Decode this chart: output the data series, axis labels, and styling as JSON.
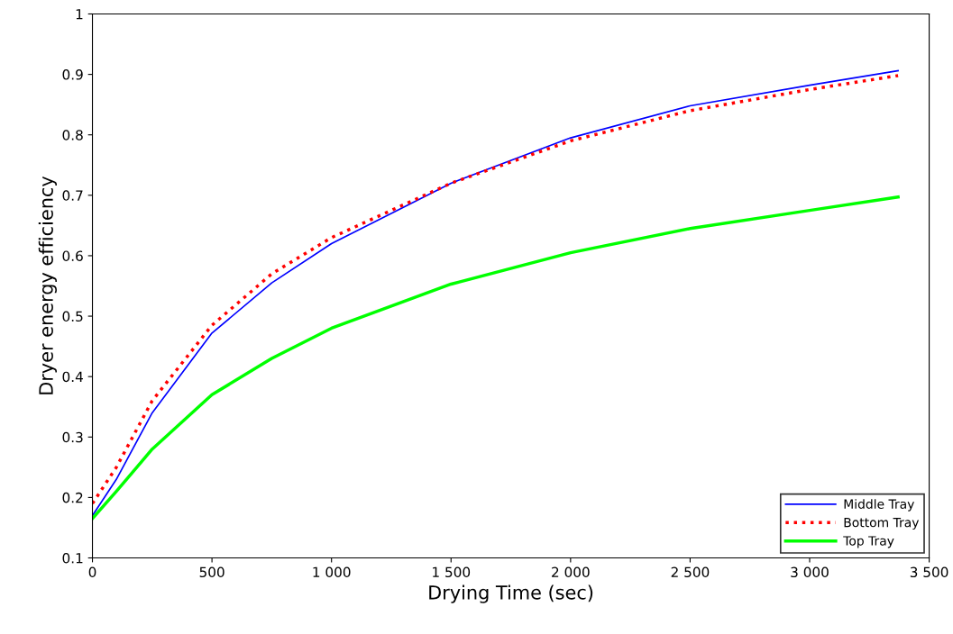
{
  "chart_data": {
    "type": "line",
    "xlabel": "Drying Time (sec)",
    "ylabel": "Dryer energy efficiency",
    "xlim": [
      0,
      3500
    ],
    "xticks": [
      0,
      500,
      {
        "value": 1000,
        "label": "1 000"
      },
      {
        "value": 1500,
        "label": "1 500"
      },
      {
        "value": 2000,
        "label": "2 000"
      },
      {
        "value": 2500,
        "label": "2 500"
      },
      {
        "value": 3000,
        "label": "3 000"
      },
      {
        "value": 3500,
        "label": "3 500"
      }
    ],
    "ylim": [
      0.1,
      1
    ],
    "yticks": [
      0.1,
      0.2,
      0.3,
      0.4,
      0.5,
      0.6,
      0.7,
      0.8,
      0.9,
      1
    ],
    "grid": false,
    "legend": "bottom right",
    "x": [
      0,
      100,
      250,
      500,
      750,
      1000,
      1500,
      2000,
      2500,
      3000,
      3370
    ],
    "series": [
      {
        "name": "Middle Tray",
        "color": "#0000ff",
        "line_style": "solid",
        "values": [
          0.17,
          0.23,
          0.34,
          0.472,
          0.555,
          0.62,
          0.72,
          0.795,
          0.848,
          0.882,
          0.906
        ]
      },
      {
        "name": "Bottom Tray",
        "color": "#ff0000",
        "line_style": "dotted",
        "values": [
          0.19,
          0.25,
          0.36,
          0.485,
          0.57,
          0.63,
          0.72,
          0.79,
          0.84,
          0.875,
          0.898
        ]
      },
      {
        "name": "Top Tray",
        "color": "#00ff00",
        "line_style": "solid",
        "values": [
          0.165,
          0.21,
          0.28,
          0.37,
          0.43,
          0.48,
          0.553,
          0.605,
          0.645,
          0.675,
          0.697
        ]
      }
    ]
  }
}
